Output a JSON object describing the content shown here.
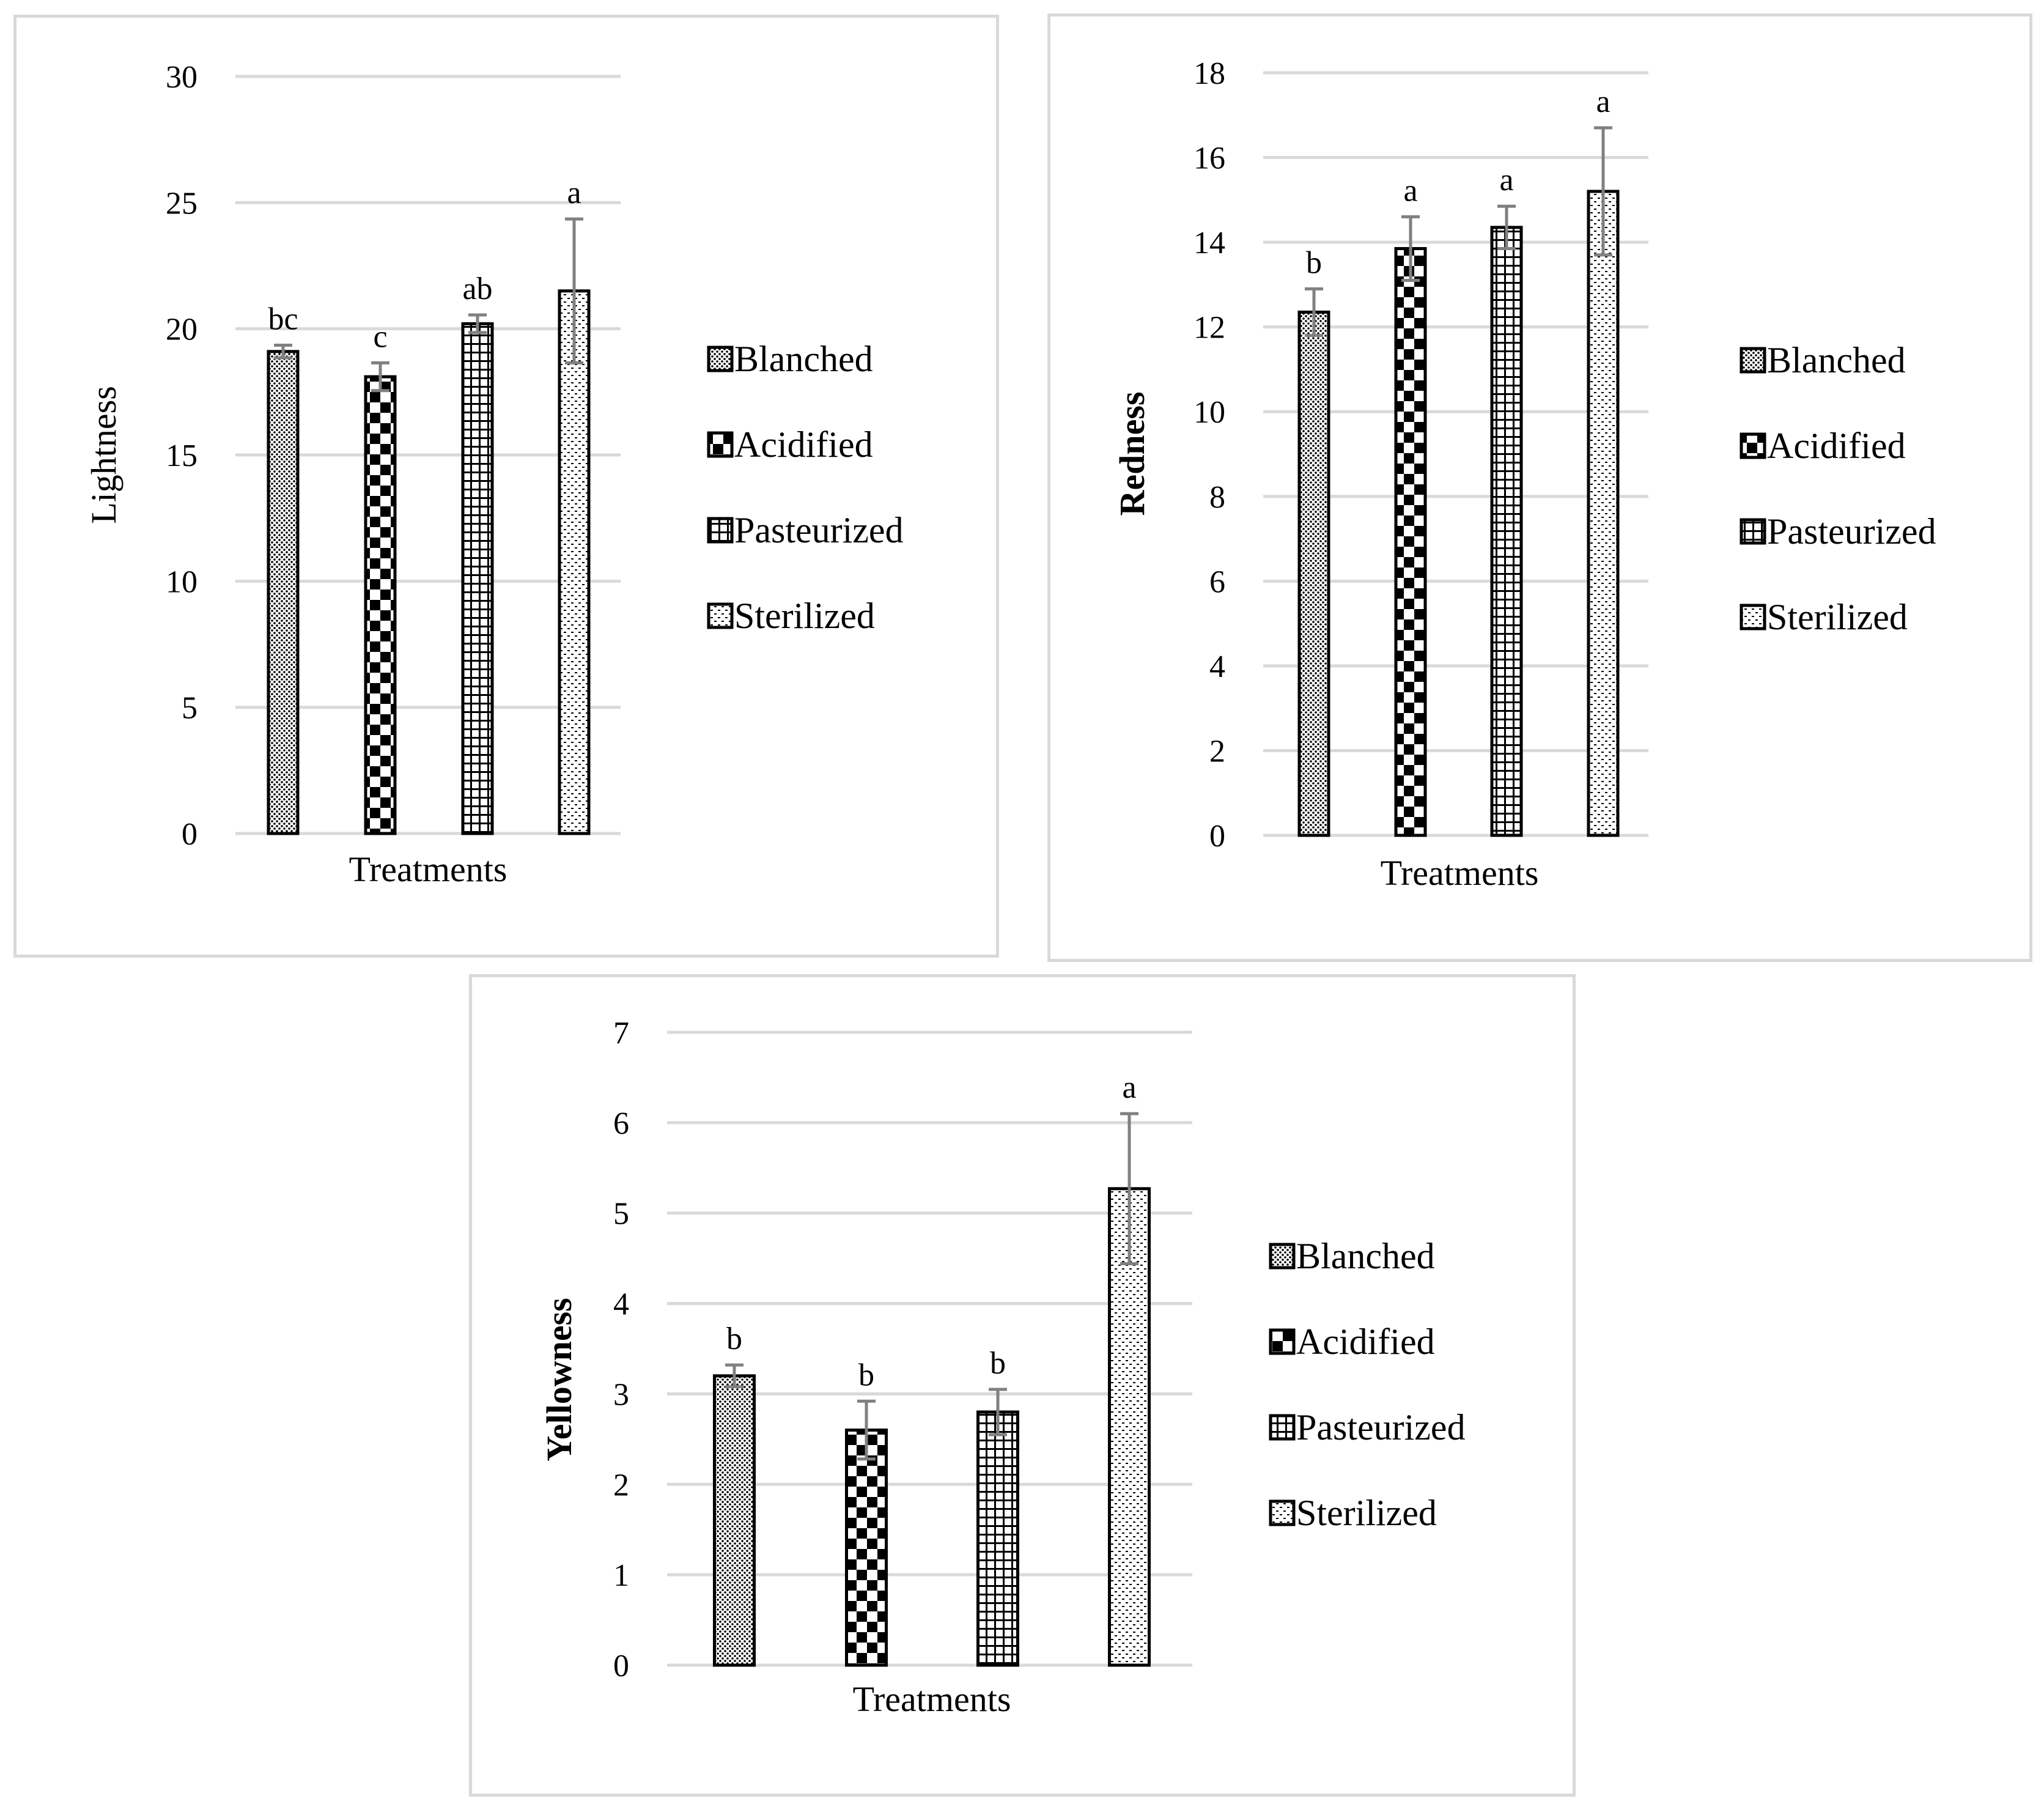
{
  "chart_data": [
    {
      "type": "bar",
      "title": "",
      "xlabel": "Treatments",
      "ylabel": "Lightness",
      "ylabel_bold": false,
      "ylim": [
        0,
        30
      ],
      "yticks": [
        0,
        5,
        10,
        15,
        20,
        25,
        30
      ],
      "grid": true,
      "legend_position": "right",
      "categories": [
        "Blanched",
        "Acidified",
        "Pasteurized",
        "Sterilized"
      ],
      "values": [
        19.1,
        18.1,
        20.2,
        21.5
      ],
      "errors": [
        0.25,
        0.55,
        0.35,
        2.85
      ],
      "letters": [
        "bc",
        "c",
        "ab",
        "a"
      ]
    },
    {
      "type": "bar",
      "title": "",
      "xlabel": "Treatments",
      "ylabel": "Redness",
      "ylabel_bold": true,
      "ylim": [
        0,
        18
      ],
      "yticks": [
        0,
        2,
        4,
        6,
        8,
        10,
        12,
        14,
        16,
        18
      ],
      "grid": true,
      "legend_position": "right",
      "categories": [
        "Blanched",
        "Acidified",
        "Pasteurized",
        "Sterilized"
      ],
      "values": [
        12.35,
        13.85,
        14.35,
        15.2
      ],
      "errors": [
        0.55,
        0.75,
        0.5,
        1.5
      ],
      "letters": [
        "b",
        "a",
        "a",
        "a"
      ]
    },
    {
      "type": "bar",
      "title": "",
      "xlabel": "Treatments",
      "ylabel": "Yellowness",
      "ylabel_bold": true,
      "ylim": [
        0,
        7
      ],
      "yticks": [
        0,
        1,
        2,
        3,
        4,
        5,
        6,
        7
      ],
      "grid": true,
      "legend_position": "right",
      "categories": [
        "Blanched",
        "Acidified",
        "Pasteurized",
        "Sterilized"
      ],
      "values": [
        3.2,
        2.6,
        2.8,
        5.27
      ],
      "errors": [
        0.12,
        0.32,
        0.25,
        0.83
      ],
      "letters": [
        "b",
        "b",
        "b",
        "a"
      ]
    }
  ],
  "colors": {
    "bar_outline": "#000000",
    "pattern": "#000000",
    "grid": "#d9d9d9",
    "error_bar": "#808080",
    "panel_border": "#d9d9d9"
  },
  "pattern_names": [
    "dots",
    "checker",
    "grid",
    "dashes"
  ]
}
